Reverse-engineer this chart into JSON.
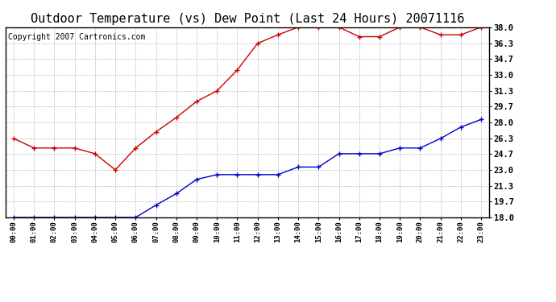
{
  "title": "Outdoor Temperature (vs) Dew Point (Last 24 Hours) 20071116",
  "copyright": "Copyright 2007 Cartronics.com",
  "x_labels": [
    "00:00",
    "01:00",
    "02:00",
    "03:00",
    "04:00",
    "05:00",
    "06:00",
    "07:00",
    "08:00",
    "09:00",
    "10:00",
    "11:00",
    "12:00",
    "13:00",
    "14:00",
    "15:00",
    "16:00",
    "17:00",
    "18:00",
    "19:00",
    "20:00",
    "21:00",
    "22:00",
    "23:00"
  ],
  "temp_data": [
    26.3,
    25.3,
    25.3,
    25.3,
    24.7,
    23.0,
    25.3,
    27.0,
    28.5,
    30.2,
    31.3,
    33.5,
    36.3,
    37.2,
    38.0,
    38.0,
    38.0,
    37.0,
    37.0,
    38.0,
    38.0,
    37.2,
    37.2,
    38.0
  ],
  "dew_data": [
    18.0,
    18.0,
    18.0,
    18.0,
    18.0,
    18.0,
    18.0,
    19.3,
    20.5,
    22.0,
    22.5,
    22.5,
    22.5,
    22.5,
    23.3,
    23.3,
    24.7,
    24.7,
    24.7,
    25.3,
    25.3,
    26.3,
    27.5,
    28.3
  ],
  "temp_color": "#cc0000",
  "dew_color": "#0000cc",
  "ylim_min": 18.0,
  "ylim_max": 38.0,
  "yticks": [
    18.0,
    19.7,
    21.3,
    23.0,
    24.7,
    26.3,
    28.0,
    29.7,
    31.3,
    33.0,
    34.7,
    36.3,
    38.0
  ],
  "ytick_labels": [
    "18.0",
    "19.7",
    "21.3",
    "23.0",
    "24.7",
    "26.3",
    "28.0",
    "29.7",
    "31.3",
    "33.0",
    "34.7",
    "36.3",
    "38.0"
  ],
  "bg_color": "#ffffff",
  "grid_color": "#bbbbbb",
  "title_fontsize": 11,
  "copyright_fontsize": 7,
  "tick_fontsize": 7.5,
  "xtick_fontsize": 6.5
}
